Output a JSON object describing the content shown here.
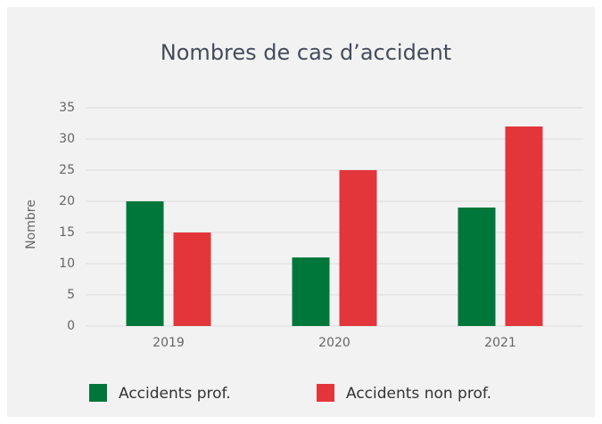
{
  "chart_data": {
    "type": "bar",
    "title": "Nombres de cas d’accident",
    "y_label": "Nombre",
    "categories": [
      "2019",
      "2020",
      "2021"
    ],
    "series": [
      {
        "name": "Accidents prof.",
        "color": "#00773a",
        "values": [
          20,
          11,
          19
        ]
      },
      {
        "name": "Accidents non prof.",
        "color": "#e3363b",
        "values": [
          15,
          25,
          32
        ]
      }
    ],
    "ylim": [
      0,
      35
    ],
    "yticks": [
      0,
      5,
      10,
      15,
      20,
      25,
      30,
      35
    ],
    "grid": true
  }
}
